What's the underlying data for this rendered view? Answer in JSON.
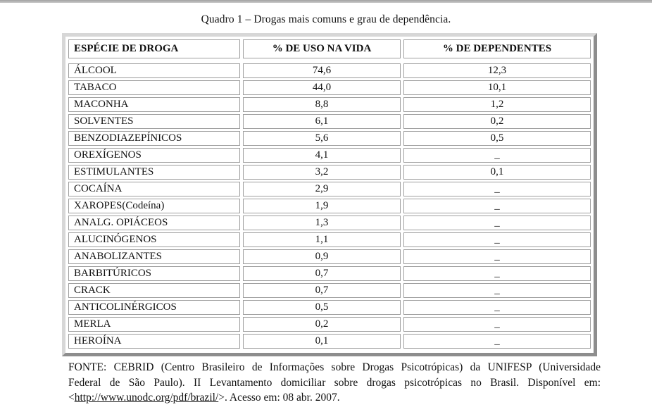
{
  "window": {
    "top_bar_color": "#b3b3b3"
  },
  "title": "Quadro 1 – Drogas mais comuns e grau de dependência.",
  "table": {
    "headers": [
      "ESPÉCIE DE DROGA",
      "% DE USO NA VIDA",
      "% DE DEPENDENTES"
    ],
    "rows": [
      {
        "droga": "ÁLCOOL",
        "uso": "74,6",
        "dependentes": "12,3"
      },
      {
        "droga": "TABACO",
        "uso": "44,0",
        "dependentes": "10,1"
      },
      {
        "droga": "MACONHA",
        "uso": "8,8",
        "dependentes": "1,2"
      },
      {
        "droga": "SOLVENTES",
        "uso": "6,1",
        "dependentes": "0,2"
      },
      {
        "droga": "BENZODIAZEPÍNICOS",
        "uso": "5,6",
        "dependentes": "0,5"
      },
      {
        "droga": "OREXÍGENOS",
        "uso": "4,1",
        "dependentes": "_"
      },
      {
        "droga": "ESTIMULANTES",
        "uso": "3,2",
        "dependentes": "0,1"
      },
      {
        "droga": "COCAÍNA",
        "uso": "2,9",
        "dependentes": "_"
      },
      {
        "droga": "XAROPES(Codeína)",
        "uso": "1,9",
        "dependentes": "_"
      },
      {
        "droga": "ANALG. OPIÁCEOS",
        "uso": "1,3",
        "dependentes": "_"
      },
      {
        "droga": "ALUCINÓGENOS",
        "uso": "1,1",
        "dependentes": "_"
      },
      {
        "droga": "ANABOLIZANTES",
        "uso": "0,9",
        "dependentes": "_"
      },
      {
        "droga": "BARBITÚRICOS",
        "uso": "0,7",
        "dependentes": "_"
      },
      {
        "droga": "CRACK",
        "uso": "0,7",
        "dependentes": "_"
      },
      {
        "droga": "ANTICOLINÉRGICOS",
        "uso": "0,5",
        "dependentes": "_"
      },
      {
        "droga": "MERLA",
        "uso": "0,2",
        "dependentes": "_"
      },
      {
        "droga": "HEROÍNA",
        "uso": "0,1",
        "dependentes": "_"
      }
    ]
  },
  "footer": {
    "line1": "FONTE: CEBRID (Centro Brasileiro de Informações sobre Drogas Psicotrópicas) da UNIFESP (Universidade",
    "line2": "Federal de São Paulo). II Levantamento domiciliar sobre drogas psicotrópicas no Brasil. Disponível em:",
    "line3_prefix": "<",
    "line3_url": "http://www.unodc.org/pdf/brazil/",
    "line3_suffix": ">.  Acesso em: 08 abr. 2007."
  }
}
